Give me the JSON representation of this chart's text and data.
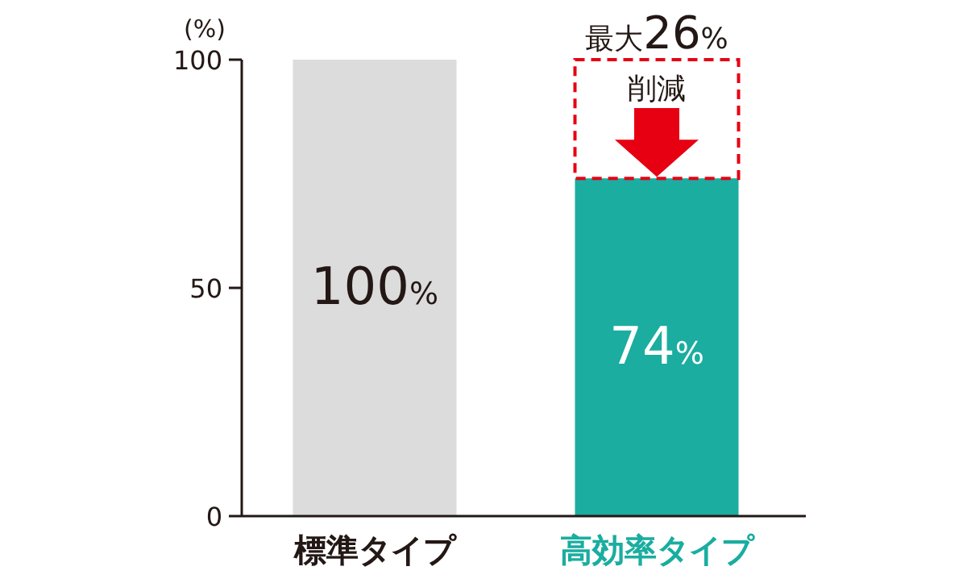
{
  "chart_data": {
    "type": "bar",
    "ylabel": "(%)",
    "categories": [
      "標準タイプ",
      "高効率タイプ"
    ],
    "values": [
      100,
      74
    ],
    "colors": [
      "#dcdcdc",
      "#1aada0"
    ],
    "value_labels": [
      "100%",
      "74%"
    ],
    "ylim": [
      0,
      100
    ],
    "yticks": [
      0,
      50,
      100
    ],
    "annotations": [
      "最大26%",
      "削減"
    ],
    "grid": false
  }
}
